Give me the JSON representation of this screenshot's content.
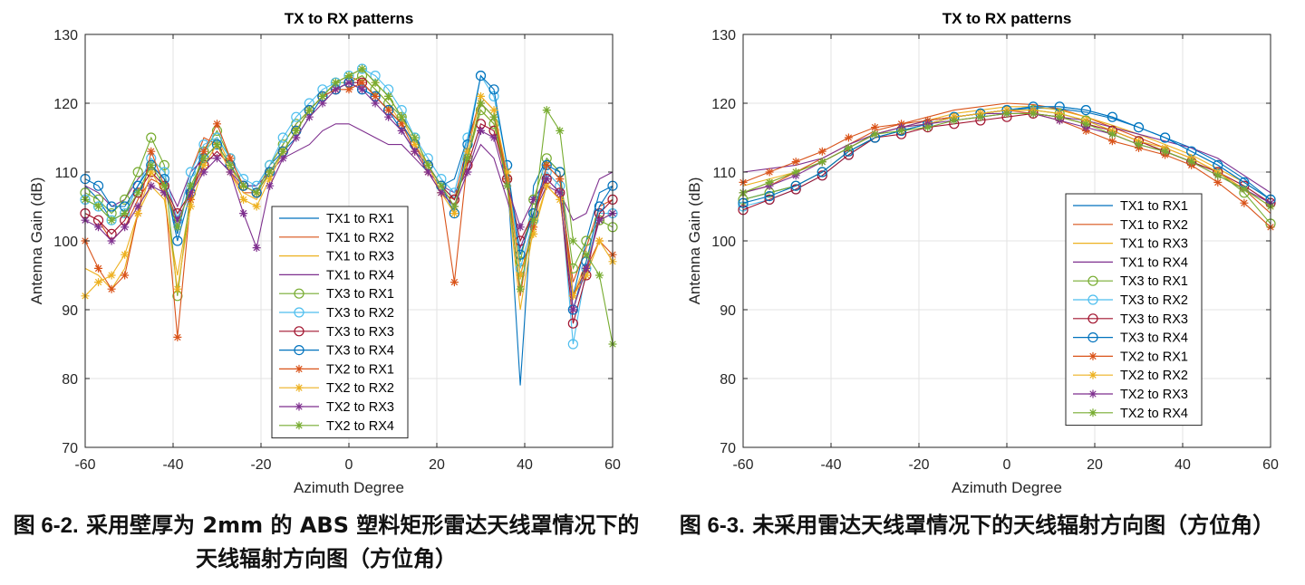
{
  "chart_data": [
    {
      "type": "line",
      "title": "TX to RX patterns",
      "xlabel": "Azimuth Degree",
      "ylabel": "Antenna Gain (dB)",
      "xlim": [
        -60,
        60
      ],
      "ylim": [
        70,
        130
      ],
      "xticks": [
        "-60",
        "-40",
        "-20",
        "0",
        "20",
        "40",
        "60"
      ],
      "yticks": [
        "70",
        "80",
        "90",
        "100",
        "110",
        "120",
        "130"
      ],
      "grid": true,
      "legend_position": "center-bottom",
      "x": [
        -60,
        -57,
        -54,
        -51,
        -48,
        -45,
        -42,
        -39,
        -36,
        -33,
        -30,
        -27,
        -24,
        -21,
        -18,
        -15,
        -12,
        -9,
        -6,
        -3,
        0,
        3,
        6,
        9,
        12,
        15,
        18,
        21,
        24,
        27,
        30,
        33,
        36,
        39,
        42,
        45,
        48,
        51,
        54,
        57,
        60
      ],
      "series": [
        {
          "name": "TX1 to RX1",
          "marker": "none",
          "color": "#0072BD",
          "values": [
            108,
            106,
            103,
            104,
            108,
            111,
            109,
            101,
            109,
            113,
            115,
            112,
            108,
            108,
            111,
            113,
            115,
            118,
            121,
            122,
            123,
            122,
            121,
            119,
            116,
            113,
            111,
            108,
            109,
            115,
            120,
            118,
            110,
            79,
            108,
            112,
            110,
            92,
            100,
            107,
            108
          ]
        },
        {
          "name": "TX1 to RX2",
          "marker": "none",
          "color": "#D95319",
          "values": [
            104,
            103,
            100,
            102,
            106,
            109,
            108,
            103,
            110,
            115,
            114,
            110,
            107,
            107,
            111,
            114,
            117,
            119,
            121,
            123,
            124,
            123,
            121,
            119,
            117,
            114,
            110,
            107,
            106,
            114,
            121,
            119,
            109,
            92,
            104,
            110,
            108,
            94,
            99,
            105,
            106
          ]
        },
        {
          "name": "TX1 to RX3",
          "marker": "none",
          "color": "#EDB120",
          "values": [
            96,
            95,
            93,
            96,
            104,
            108,
            106,
            95,
            106,
            113,
            115,
            111,
            107,
            106,
            110,
            113,
            116,
            119,
            121,
            122,
            123,
            124,
            122,
            120,
            117,
            114,
            111,
            107,
            105,
            112,
            119,
            117,
            108,
            90,
            102,
            108,
            106,
            92,
            97,
            103,
            104
          ]
        },
        {
          "name": "TX1 to RX4",
          "marker": "none",
          "color": "#7E2F8E",
          "values": [
            108,
            107,
            105,
            106,
            109,
            111,
            109,
            105,
            110,
            112,
            112,
            110,
            108,
            108,
            110,
            112,
            113,
            114,
            116,
            117,
            117,
            116,
            115,
            114,
            114,
            112,
            110,
            108,
            107,
            110,
            114,
            112,
            106,
            99,
            104,
            108,
            107,
            103,
            104,
            109,
            110
          ]
        },
        {
          "name": "TX3 to RX1",
          "marker": "circle",
          "color": "#77AC30",
          "values": [
            107,
            106,
            104,
            106,
            110,
            115,
            111,
            92,
            107,
            113,
            116,
            112,
            108,
            107,
            111,
            114,
            117,
            119,
            121,
            123,
            123,
            124,
            122,
            120,
            118,
            115,
            111,
            108,
            106,
            112,
            119,
            117,
            109,
            97,
            106,
            112,
            110,
            96,
            100,
            103,
            102
          ]
        },
        {
          "name": "TX3 to RX2",
          "marker": "circle",
          "color": "#4DBEEE",
          "values": [
            106,
            105,
            103,
            104,
            108,
            112,
            110,
            103,
            110,
            114,
            115,
            112,
            109,
            108,
            111,
            115,
            118,
            120,
            122,
            123,
            124,
            125,
            124,
            122,
            119,
            115,
            112,
            109,
            107,
            115,
            124,
            121,
            111,
            96,
            103,
            110,
            108,
            85,
            96,
            104,
            104
          ]
        },
        {
          "name": "TX3 to RX3",
          "marker": "circle",
          "color": "#A2142F",
          "values": [
            104,
            103,
            101,
            103,
            107,
            110,
            108,
            104,
            107,
            111,
            113,
            111,
            108,
            107,
            110,
            113,
            116,
            119,
            121,
            122,
            123,
            123,
            121,
            119,
            117,
            114,
            111,
            108,
            106,
            111,
            117,
            116,
            109,
            100,
            104,
            109,
            107,
            88,
            95,
            104,
            106
          ]
        },
        {
          "name": "TX3 to RX4",
          "marker": "circle",
          "color": "#0072BD",
          "values": [
            109,
            108,
            105,
            105,
            108,
            111,
            109,
            100,
            107,
            112,
            114,
            111,
            108,
            107,
            110,
            113,
            116,
            119,
            121,
            122,
            123,
            122,
            121,
            119,
            117,
            114,
            111,
            108,
            104,
            114,
            124,
            122,
            111,
            98,
            104,
            111,
            110,
            90,
            97,
            105,
            108
          ]
        },
        {
          "name": "TX2 to RX1",
          "marker": "asterisk",
          "color": "#D95319",
          "values": [
            100,
            96,
            93,
            95,
            104,
            113,
            108,
            86,
            106,
            113,
            117,
            112,
            108,
            107,
            110,
            113,
            116,
            119,
            121,
            122,
            122,
            123,
            121,
            119,
            117,
            113,
            110,
            107,
            94,
            112,
            120,
            118,
            109,
            95,
            102,
            111,
            109,
            92,
            96,
            100,
            98
          ]
        },
        {
          "name": "TX2 to RX2",
          "marker": "asterisk",
          "color": "#EDB120",
          "values": [
            92,
            94,
            95,
            98,
            104,
            110,
            107,
            93,
            105,
            111,
            114,
            110,
            106,
            105,
            109,
            113,
            116,
            119,
            121,
            123,
            124,
            125,
            123,
            121,
            118,
            114,
            111,
            107,
            104,
            113,
            121,
            119,
            110,
            95,
            101,
            108,
            106,
            92,
            95,
            100,
            97
          ]
        },
        {
          "name": "TX2 to RX3",
          "marker": "asterisk",
          "color": "#7E2F8E",
          "values": [
            103,
            102,
            100,
            102,
            105,
            108,
            107,
            103,
            107,
            110,
            112,
            110,
            104,
            99,
            108,
            112,
            115,
            118,
            120,
            122,
            123,
            122,
            120,
            118,
            116,
            113,
            110,
            107,
            105,
            110,
            116,
            115,
            108,
            102,
            106,
            109,
            107,
            90,
            96,
            103,
            104
          ]
        },
        {
          "name": "TX2 to RX4",
          "marker": "asterisk",
          "color": "#77AC30",
          "values": [
            106,
            105,
            103,
            104,
            107,
            111,
            108,
            102,
            108,
            112,
            114,
            111,
            108,
            107,
            110,
            113,
            116,
            119,
            121,
            123,
            124,
            125,
            123,
            121,
            118,
            115,
            111,
            108,
            105,
            112,
            120,
            118,
            108,
            93,
            103,
            119,
            116,
            100,
            98,
            95,
            85
          ]
        }
      ]
    },
    {
      "type": "line",
      "title": "TX to RX patterns",
      "xlabel": "Azimuth Degree",
      "ylabel": "Antenna Gain (dB)",
      "xlim": [
        -60,
        60
      ],
      "ylim": [
        70,
        130
      ],
      "xticks": [
        "-60",
        "-40",
        "-20",
        "0",
        "20",
        "40",
        "60"
      ],
      "yticks": [
        "70",
        "80",
        "90",
        "100",
        "110",
        "120",
        "130"
      ],
      "grid": true,
      "legend_position": "right",
      "x": [
        -60,
        -54,
        -48,
        -42,
        -36,
        -30,
        -24,
        -18,
        -12,
        -6,
        0,
        6,
        12,
        18,
        24,
        30,
        36,
        42,
        48,
        54,
        60
      ],
      "series": [
        {
          "name": "TX1 to RX1",
          "marker": "none",
          "color": "#0072BD",
          "values": [
            106,
            107,
            108,
            110,
            113,
            115,
            116,
            117,
            118,
            118.5,
            119,
            119.3,
            119.2,
            118.7,
            117.8,
            116.5,
            115,
            113.5,
            111.5,
            109,
            106
          ]
        },
        {
          "name": "TX1 to RX2",
          "marker": "none",
          "color": "#D95319",
          "values": [
            107,
            108,
            110,
            112,
            114,
            116,
            117,
            118,
            119,
            119.5,
            120,
            119.8,
            119.2,
            118,
            116.5,
            115,
            113.5,
            112,
            110,
            107.5,
            104
          ]
        },
        {
          "name": "TX1 to RX3",
          "marker": "none",
          "color": "#EDB120",
          "values": [
            108,
            109,
            110,
            111.5,
            113.5,
            115.5,
            116.5,
            117.5,
            118.5,
            119,
            119.5,
            119.5,
            119,
            118,
            116.8,
            115.5,
            114,
            112.5,
            110.5,
            108.5,
            106
          ]
        },
        {
          "name": "TX1 to RX4",
          "marker": "none",
          "color": "#7E2F8E",
          "values": [
            110,
            110.5,
            111,
            112,
            114,
            115.5,
            116.5,
            117.5,
            118,
            118.5,
            118.5,
            118.5,
            118,
            117.5,
            116.5,
            115.5,
            114.5,
            113.5,
            112,
            109.5,
            107
          ]
        },
        {
          "name": "TX3 to RX1",
          "marker": "circle",
          "color": "#77AC30",
          "values": [
            106,
            107,
            108,
            110,
            113,
            115,
            116,
            117,
            118,
            118.5,
            119,
            119,
            118.5,
            117.5,
            116,
            114.5,
            113,
            111.5,
            110,
            107,
            102.5
          ]
        },
        {
          "name": "TX3 to RX2",
          "marker": "circle",
          "color": "#4DBEEE",
          "values": [
            105,
            106,
            107.5,
            109.5,
            112.5,
            115,
            116,
            117,
            118,
            118.5,
            119,
            119.5,
            119.5,
            119,
            118,
            116.5,
            115,
            113,
            111,
            108.5,
            106
          ]
        },
        {
          "name": "TX3 to RX3",
          "marker": "circle",
          "color": "#A2142F",
          "values": [
            104.5,
            106,
            107.5,
            109.5,
            112.5,
            115,
            115.5,
            116.5,
            117,
            117.5,
            118,
            118.5,
            118,
            117,
            116,
            114.5,
            113,
            111.5,
            110,
            108,
            105.5
          ]
        },
        {
          "name": "TX3 to RX4",
          "marker": "circle",
          "color": "#0072BD",
          "values": [
            105.5,
            106.5,
            108,
            110,
            113,
            115,
            116,
            117,
            118,
            118.5,
            119,
            119.5,
            119.5,
            119,
            118,
            116.5,
            115,
            113,
            111,
            108.5,
            106
          ]
        },
        {
          "name": "TX2 to RX1",
          "marker": "asterisk",
          "color": "#D95319",
          "values": [
            108.5,
            110,
            111.5,
            113,
            115,
            116.5,
            117,
            117.5,
            118,
            118.5,
            119,
            118.5,
            117.5,
            116,
            114.5,
            113.5,
            112.5,
            111,
            108.5,
            105.5,
            102
          ]
        },
        {
          "name": "TX2 to RX2",
          "marker": "asterisk",
          "color": "#EDB120",
          "values": [
            107,
            108.5,
            110,
            111.5,
            113.5,
            115.5,
            116.5,
            117,
            118,
            118.5,
            119,
            119,
            118.5,
            117.5,
            116,
            114.5,
            113.5,
            112,
            110,
            107.5,
            105
          ]
        },
        {
          "name": "TX2 to RX3",
          "marker": "asterisk",
          "color": "#7E2F8E",
          "values": [
            107,
            108,
            109.5,
            111.5,
            113.5,
            115.5,
            116.5,
            117,
            117.5,
            118,
            118.5,
            118.5,
            117.5,
            116.5,
            115.5,
            114,
            113,
            111.5,
            109.5,
            107.5,
            105.5
          ]
        },
        {
          "name": "TX2 to RX4",
          "marker": "asterisk",
          "color": "#77AC30",
          "values": [
            107,
            108.5,
            110,
            111.5,
            113.5,
            115.5,
            116,
            116.5,
            117.5,
            118,
            118.5,
            118.5,
            118,
            117,
            115.5,
            114,
            113,
            111.5,
            109.5,
            107.5,
            105
          ]
        }
      ]
    }
  ],
  "captions": [
    {
      "figure_number": "图 6-2.",
      "text": "采用壁厚为 2mm 的 ABS 塑料矩形雷达天线罩情况下的天线辐射方向图（方位角）"
    },
    {
      "figure_number": "图 6-3.",
      "text": "未采用雷达天线罩情况下的天线辐射方向图（方位角）"
    }
  ]
}
